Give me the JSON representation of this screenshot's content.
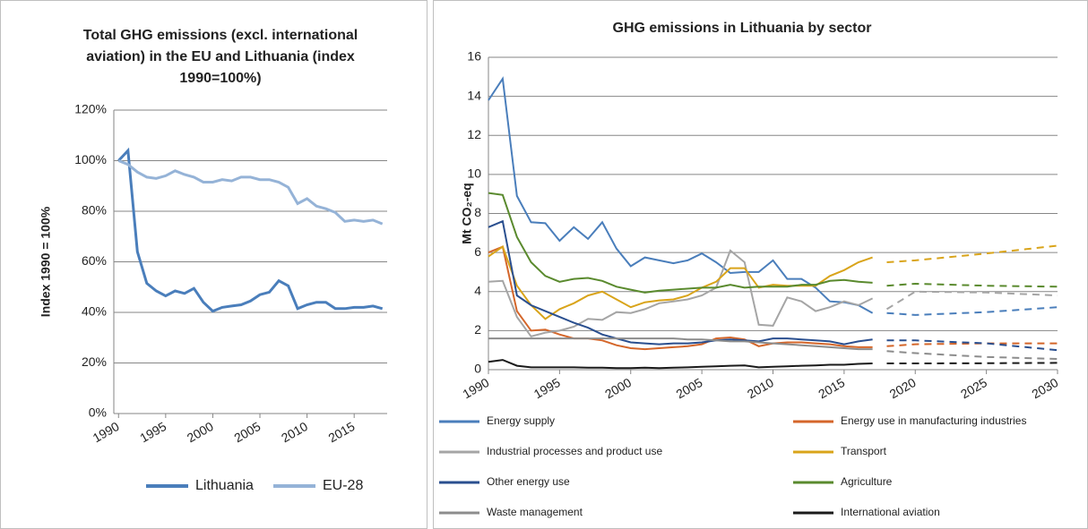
{
  "chart_data": [
    {
      "type": "line",
      "title": [
        "Total GHG emissions (excl. international",
        "aviation) in the EU and Lithuania (index",
        "1990=100%)"
      ],
      "y_label": "Index 1990 = 100%",
      "x": [
        1990,
        1991,
        1992,
        1993,
        1994,
        1995,
        1996,
        1997,
        1998,
        1999,
        2000,
        2001,
        2002,
        2003,
        2004,
        2005,
        2006,
        2007,
        2008,
        2009,
        2010,
        2011,
        2012,
        2013,
        2014,
        2015,
        2016,
        2017,
        2018
      ],
      "xlim": [
        1989.5,
        2018.5
      ],
      "xticks": [
        1990,
        1995,
        2000,
        2005,
        2010,
        2015
      ],
      "ylim": [
        0,
        120
      ],
      "yticks": [
        {
          "value": 0,
          "label": "0%"
        },
        {
          "value": 20,
          "label": "20%"
        },
        {
          "value": 40,
          "label": "40%"
        },
        {
          "value": 60,
          "label": "60%"
        },
        {
          "value": 80,
          "label": "80%"
        },
        {
          "value": 100,
          "label": "100%"
        },
        {
          "value": 120,
          "label": "120%"
        }
      ],
      "grid": true,
      "legend": "bottom",
      "series": [
        {
          "name": "Lithuania",
          "color": "#4a7ebb",
          "values": [
            100,
            104,
            64,
            51.5,
            48.5,
            46.5,
            48.5,
            47.5,
            49.5,
            44,
            40.5,
            42,
            42.5,
            43,
            44.5,
            47,
            48,
            52.5,
            50.5,
            41.5,
            43,
            44,
            44,
            41.5,
            41.5,
            42,
            42,
            42.5,
            41.5
          ]
        },
        {
          "name": "EU-28",
          "color": "#95b3d7",
          "values": [
            100,
            98.5,
            95.5,
            93.5,
            93,
            94,
            96,
            94.5,
            93.5,
            91.5,
            91.5,
            92.5,
            92,
            93.5,
            93.5,
            92.5,
            92.5,
            91.5,
            89.5,
            83,
            85,
            82,
            81,
            79.5,
            76,
            76.5,
            76,
            76.5,
            75
          ]
        }
      ]
    },
    {
      "type": "line",
      "title": [
        "GHG emissions in  Lithuania by sector"
      ],
      "y_label": "Mt CO₂-eq",
      "x": [
        1990,
        1991,
        1992,
        1993,
        1994,
        1995,
        1996,
        1997,
        1998,
        1999,
        2000,
        2001,
        2002,
        2003,
        2004,
        2005,
        2006,
        2007,
        2008,
        2009,
        2010,
        2011,
        2012,
        2013,
        2014,
        2015,
        2016,
        2017
      ],
      "projection_x": [
        2018,
        2020,
        2025,
        2030
      ],
      "xlim": [
        1990,
        2030
      ],
      "xticks": [
        1990,
        1995,
        2000,
        2005,
        2010,
        2015,
        2020,
        2025,
        2030
      ],
      "ylim": [
        0,
        16
      ],
      "yticks": [
        0,
        2,
        4,
        6,
        8,
        10,
        12,
        14,
        16
      ],
      "grid": true,
      "legend": "bottom",
      "series": [
        {
          "name": "Energy supply",
          "color": "#4a7ebb",
          "values": [
            13.8,
            14.9,
            8.9,
            7.55,
            7.5,
            6.6,
            7.3,
            6.7,
            7.55,
            6.2,
            5.3,
            5.75,
            5.6,
            5.45,
            5.6,
            5.95,
            5.5,
            4.95,
            5.0,
            5.0,
            5.6,
            4.65,
            4.65,
            4.2,
            3.5,
            3.45,
            3.3,
            2.9
          ],
          "projection": [
            2.9,
            2.8,
            2.95,
            3.2
          ]
        },
        {
          "name": "Energy use in manufacturing industries",
          "color": "#d4662a",
          "values": [
            6.0,
            6.3,
            3.0,
            2.0,
            2.05,
            1.8,
            1.6,
            1.6,
            1.5,
            1.25,
            1.1,
            1.05,
            1.1,
            1.15,
            1.2,
            1.3,
            1.6,
            1.65,
            1.55,
            1.2,
            1.35,
            1.4,
            1.4,
            1.35,
            1.3,
            1.2,
            1.15,
            1.15
          ],
          "projection": [
            1.2,
            1.3,
            1.35,
            1.35
          ]
        },
        {
          "name": "Industrial processes and product use",
          "color": "#a5a5a5",
          "values": [
            4.5,
            4.55,
            2.7,
            1.7,
            1.9,
            2.0,
            2.2,
            2.6,
            2.55,
            2.95,
            2.9,
            3.1,
            3.4,
            3.5,
            3.6,
            3.8,
            4.2,
            6.1,
            5.5,
            2.3,
            2.25,
            3.7,
            3.5,
            3.0,
            3.2,
            3.5,
            3.3,
            3.65
          ],
          "projection": [
            3.1,
            4.0,
            3.95,
            3.8
          ]
        },
        {
          "name": "Transport",
          "color": "#d9a41a",
          "values": [
            5.8,
            6.3,
            4.3,
            3.3,
            2.6,
            3.1,
            3.4,
            3.8,
            4.0,
            3.6,
            3.2,
            3.45,
            3.55,
            3.6,
            3.8,
            4.2,
            4.5,
            5.2,
            5.2,
            4.2,
            4.35,
            4.3,
            4.3,
            4.3,
            4.8,
            5.1,
            5.5,
            5.75
          ],
          "projection": [
            5.5,
            5.6,
            5.95,
            6.35
          ]
        },
        {
          "name": "Other energy use",
          "color": "#2a4f8f",
          "values": [
            7.3,
            7.6,
            3.8,
            3.3,
            3.0,
            2.7,
            2.4,
            2.15,
            1.8,
            1.6,
            1.4,
            1.35,
            1.3,
            1.35,
            1.35,
            1.4,
            1.5,
            1.55,
            1.5,
            1.45,
            1.6,
            1.6,
            1.55,
            1.5,
            1.45,
            1.3,
            1.45,
            1.55
          ],
          "projection": [
            1.5,
            1.5,
            1.35,
            1.0
          ]
        },
        {
          "name": "Agriculture",
          "color": "#5a8a2e",
          "values": [
            9.05,
            8.95,
            6.8,
            5.5,
            4.8,
            4.5,
            4.65,
            4.7,
            4.55,
            4.25,
            4.1,
            3.95,
            4.05,
            4.1,
            4.15,
            4.2,
            4.2,
            4.35,
            4.2,
            4.25,
            4.25,
            4.25,
            4.35,
            4.35,
            4.55,
            4.6,
            4.5,
            4.45
          ],
          "projection": [
            4.3,
            4.4,
            4.3,
            4.25
          ]
        },
        {
          "name": "Waste management",
          "color": "#8c8c8c",
          "values": [
            1.6,
            1.6,
            1.6,
            1.6,
            1.6,
            1.6,
            1.6,
            1.6,
            1.6,
            1.6,
            1.6,
            1.6,
            1.6,
            1.6,
            1.55,
            1.55,
            1.5,
            1.45,
            1.45,
            1.4,
            1.35,
            1.3,
            1.25,
            1.2,
            1.15,
            1.1,
            1.05,
            1.05
          ],
          "projection": [
            0.95,
            0.85,
            0.65,
            0.55
          ]
        },
        {
          "name": "International aviation",
          "color": "#1a1a1a",
          "values": [
            0.4,
            0.5,
            0.2,
            0.12,
            0.12,
            0.12,
            0.12,
            0.1,
            0.1,
            0.08,
            0.08,
            0.1,
            0.08,
            0.1,
            0.12,
            0.15,
            0.17,
            0.2,
            0.22,
            0.12,
            0.15,
            0.17,
            0.2,
            0.22,
            0.25,
            0.25,
            0.3,
            0.32
          ],
          "projection": [
            0.32,
            0.32,
            0.33,
            0.35
          ]
        }
      ]
    }
  ]
}
